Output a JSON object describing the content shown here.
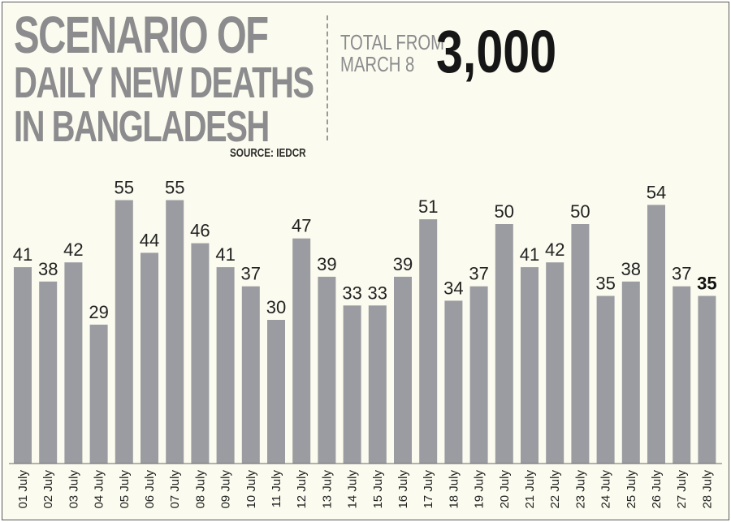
{
  "title_lines": [
    "SCENARIO OF",
    "DAILY NEW DEATHS",
    "IN BANGLADESH"
  ],
  "source": "SOURCE: IEDCR",
  "total": {
    "label_lines": [
      "TOTAL FROM",
      "MARCH 8"
    ],
    "value": "3,000"
  },
  "colors": {
    "bar": "#9b9ca1",
    "background": "#fbfbef",
    "title": "#8c8c8e"
  },
  "chart_data": {
    "type": "bar",
    "title": "SCENARIO OF DAILY NEW DEATHS IN BANGLADESH",
    "xlabel": "",
    "ylabel": "",
    "grid": false,
    "categories": [
      "01 July",
      "02 July",
      "03 July",
      "04 July",
      "05 July",
      "06 July",
      "07 July",
      "08 July",
      "09 July",
      "10 July",
      "11 July",
      "12 July",
      "13 July",
      "14 July",
      "15 July",
      "16 July",
      "17 July",
      "18 July",
      "19 July",
      "20 July",
      "21 July",
      "22 July",
      "23 July",
      "24 July",
      "25 July",
      "26 July",
      "27 July",
      "28 July"
    ],
    "values": [
      41,
      38,
      42,
      29,
      55,
      44,
      55,
      46,
      41,
      37,
      30,
      47,
      39,
      33,
      33,
      39,
      51,
      34,
      37,
      50,
      41,
      42,
      50,
      35,
      38,
      54,
      37,
      35
    ],
    "highlight": "28 July",
    "ylim": [
      0,
      60
    ]
  }
}
